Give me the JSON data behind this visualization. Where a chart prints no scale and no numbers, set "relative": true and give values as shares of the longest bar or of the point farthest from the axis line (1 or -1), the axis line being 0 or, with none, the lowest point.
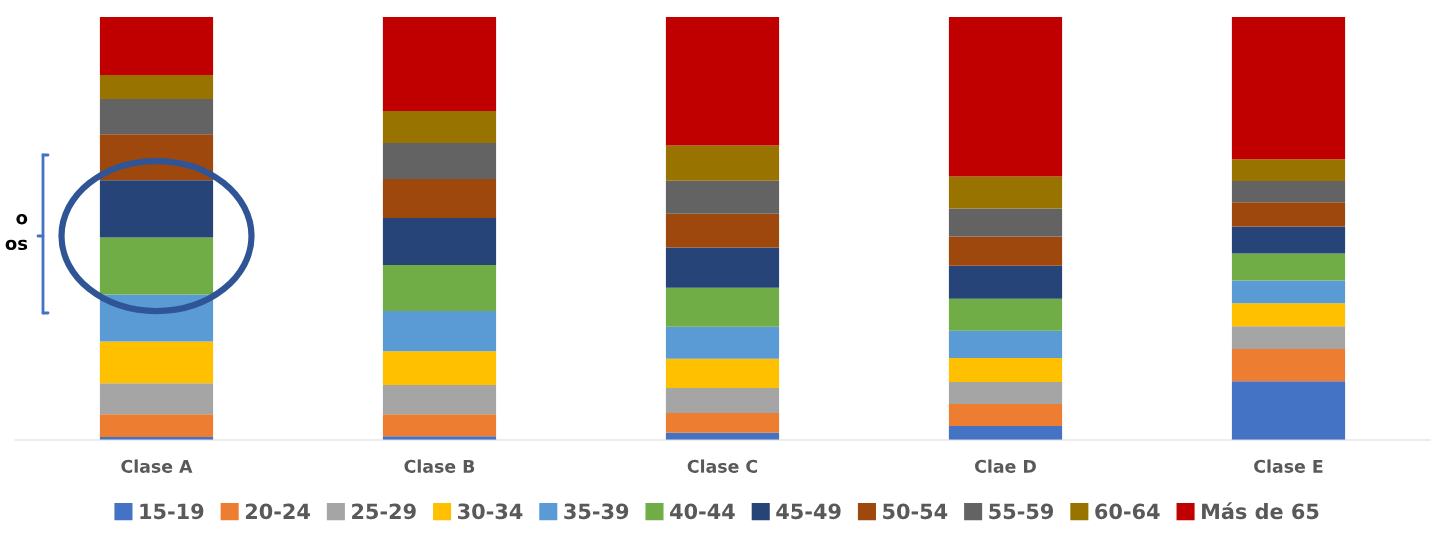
{
  "chart_data": {
    "type": "bar",
    "stacked": true,
    "relative": true,
    "legend": "bottom",
    "grid": false,
    "categories": [
      "Clase A",
      "Clase B",
      "Clase C",
      "Clae D",
      "Clase E"
    ],
    "series": [
      {
        "name": "15-19",
        "color": "#4472c4",
        "values": [
          0.007,
          0.009,
          0.017,
          0.033,
          0.139
        ]
      },
      {
        "name": "20-24",
        "color": "#ed7d31",
        "values": [
          0.054,
          0.052,
          0.047,
          0.052,
          0.076
        ]
      },
      {
        "name": "25-29",
        "color": "#a5a5a5",
        "values": [
          0.073,
          0.069,
          0.059,
          0.052,
          0.054
        ]
      },
      {
        "name": "30-34",
        "color": "#ffc000",
        "values": [
          0.099,
          0.08,
          0.069,
          0.057,
          0.054
        ]
      },
      {
        "name": "35-39",
        "color": "#5b9bd5",
        "values": [
          0.111,
          0.095,
          0.076,
          0.064,
          0.054
        ]
      },
      {
        "name": "40-44",
        "color": "#70ad47",
        "values": [
          0.135,
          0.109,
          0.092,
          0.076,
          0.064
        ]
      },
      {
        "name": "45-49",
        "color": "#264478",
        "values": [
          0.135,
          0.111,
          0.095,
          0.078,
          0.064
        ]
      },
      {
        "name": "50-54",
        "color": "#9e480e",
        "values": [
          0.109,
          0.092,
          0.08,
          0.069,
          0.057
        ]
      },
      {
        "name": "55-59",
        "color": "#636363",
        "values": [
          0.083,
          0.085,
          0.078,
          0.066,
          0.05
        ]
      },
      {
        "name": "60-64",
        "color": "#997300",
        "values": [
          0.057,
          0.076,
          0.083,
          0.076,
          0.052
        ]
      },
      {
        "name": "Más de 65",
        "color": "#c00000",
        "values": [
          0.137,
          0.222,
          0.304,
          0.377,
          0.336
        ]
      }
    ],
    "annotations": [
      "o\nos"
    ]
  }
}
